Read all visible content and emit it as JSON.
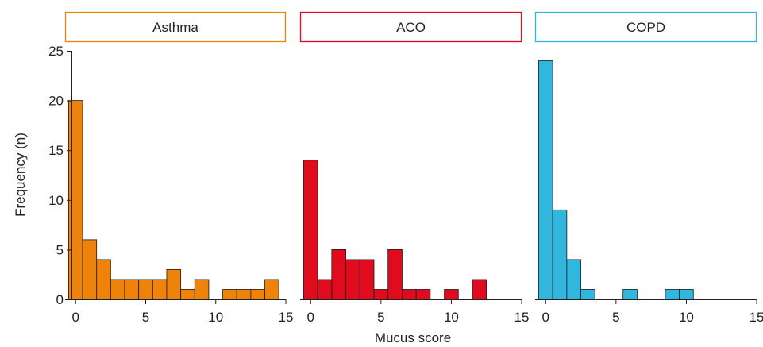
{
  "chart_data": {
    "type": "bar",
    "xlabel": "Mucus score",
    "ylabel": "Frequency (n)",
    "ylim": [
      0,
      25
    ],
    "yticks": [
      0,
      5,
      10,
      15,
      20,
      25
    ],
    "xlim": [
      -0.75,
      15
    ],
    "xticks": [
      0,
      5,
      10,
      15
    ],
    "bin_width": 1,
    "bin_starts": [
      -0.5,
      0.5,
      1.5,
      2.5,
      3.5,
      4.5,
      5.5,
      6.5,
      7.5,
      8.5,
      9.5,
      10.5,
      11.5,
      12.5,
      13.5
    ],
    "panels": [
      {
        "title": "Asthma",
        "color": "#ef8208",
        "values": [
          20,
          6,
          4,
          2,
          2,
          2,
          2,
          3,
          1,
          2,
          0,
          1,
          1,
          1,
          2
        ]
      },
      {
        "title": "ACO",
        "color": "#e00b1d",
        "values": [
          14,
          2,
          5,
          4,
          4,
          1,
          5,
          1,
          1,
          0,
          1,
          0,
          2,
          0,
          0
        ]
      },
      {
        "title": "COPD",
        "color": "#31b6de",
        "values": [
          24,
          9,
          4,
          1,
          0,
          0,
          1,
          0,
          0,
          1,
          1,
          0,
          0,
          0,
          0
        ]
      }
    ]
  }
}
